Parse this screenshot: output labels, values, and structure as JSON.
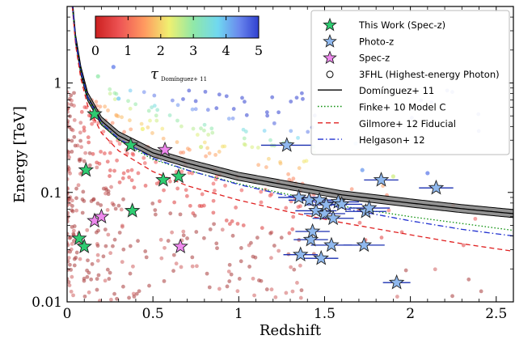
{
  "chart_data": {
    "type": "scatter",
    "xlabel": "Redshift",
    "ylabel": "Energy [TeV]",
    "xlim": [
      0,
      2.6
    ],
    "ylim": [
      0.01,
      5
    ],
    "yscale": "log",
    "x_ticks": [
      0,
      0.5,
      1,
      1.5,
      2,
      2.5
    ],
    "x_tick_labels": [
      "0",
      "0.5",
      "1",
      "1.5",
      "2",
      "2.5"
    ],
    "y_ticks": [
      0.01,
      0.1,
      1
    ],
    "y_tick_labels": [
      "0.01",
      "0.1",
      "1"
    ],
    "colorbar": {
      "label": "τ",
      "label_subscript": "Domínguez+ 11",
      "range": [
        0,
        5
      ],
      "ticks": [
        "0",
        "1",
        "2",
        "3",
        "4",
        "5"
      ]
    },
    "legend_position": "top-right",
    "legend": [
      {
        "label": "This Work (Spec-z)",
        "marker": "star",
        "color": "#2ecc71"
      },
      {
        "label": "Photo-z",
        "marker": "star",
        "color": "#8fb8ee"
      },
      {
        "label": "Spec-z",
        "marker": "star",
        "color": "#ee88ee"
      },
      {
        "label": "3FHL (Highest-energy Photon)",
        "marker": "circle",
        "color": "#ffffff"
      },
      {
        "label": "Domínguez+ 11",
        "marker": "line",
        "color": "#000000",
        "dash": "solid"
      },
      {
        "label": "Finke+ 10 Model C",
        "marker": "line",
        "color": "#0a8f0a",
        "dash": "dotted"
      },
      {
        "label": "Gilmore+ 12 Fiducial",
        "marker": "line",
        "color": "#e02020",
        "dash": "dashed"
      },
      {
        "label": "Helgason+ 12",
        "marker": "line",
        "color": "#2030d0",
        "dash": "dashdot"
      }
    ],
    "series": [
      {
        "name": "This Work (Spec-z)",
        "color": "#2ecc71",
        "x": [
          0.07,
          0.1,
          0.11,
          0.16,
          0.37,
          0.38,
          0.56,
          0.65
        ],
        "y": [
          0.038,
          0.032,
          0.16,
          0.52,
          0.27,
          0.068,
          0.13,
          0.14
        ]
      },
      {
        "name": "Spec-z",
        "color": "#ee88ee",
        "x": [
          0.16,
          0.2,
          0.57,
          0.66
        ],
        "y": [
          0.055,
          0.06,
          0.245,
          0.032
        ]
      },
      {
        "name": "Photo-z",
        "color": "#8fb8ee",
        "x": [
          1.28,
          1.35,
          1.36,
          1.41,
          1.42,
          1.43,
          1.45,
          1.47,
          1.48,
          1.5,
          1.51,
          1.54,
          1.55,
          1.58,
          1.6,
          1.73,
          1.74,
          1.76,
          1.83,
          1.92,
          2.15
        ],
        "y": [
          0.27,
          0.09,
          0.027,
          0.085,
          0.037,
          0.044,
          0.068,
          0.085,
          0.025,
          0.064,
          0.077,
          0.033,
          0.058,
          0.082,
          0.078,
          0.033,
          0.067,
          0.072,
          0.13,
          0.015,
          0.11
        ],
        "xerr": [
          0.15,
          0.12,
          0.1,
          0.12,
          0.1,
          0.1,
          0.12,
          0.12,
          0.1,
          0.12,
          0.12,
          0.12,
          0.12,
          0.12,
          0.12,
          0.12,
          0.12,
          0.12,
          0.1,
          0.08,
          0.1
        ]
      }
    ],
    "scatter_3fhl": {
      "name": "3FHL (Highest-energy Photon)",
      "count": 520,
      "x_range": [
        0,
        2.5
      ],
      "y_range": [
        0.01,
        1
      ]
    },
    "curves": [
      {
        "name": "Domínguez+ 11",
        "color": "#000000",
        "dash": "solid",
        "x": [
          0.03,
          0.05,
          0.08,
          0.12,
          0.2,
          0.3,
          0.5,
          0.7,
          1.0,
          1.3,
          1.6,
          2.0,
          2.3,
          2.6
        ],
        "y": [
          5.5,
          2.5,
          1.3,
          0.75,
          0.45,
          0.33,
          0.23,
          0.185,
          0.14,
          0.115,
          0.095,
          0.08,
          0.071,
          0.064
        ]
      },
      {
        "name": "Finke+ 10 Model C",
        "color": "#0a8f0a",
        "dash": "dotted",
        "x": [
          0.03,
          0.05,
          0.08,
          0.12,
          0.2,
          0.3,
          0.5,
          0.7,
          1.0,
          1.3,
          1.6,
          2.0,
          2.3,
          2.6
        ],
        "y": [
          5.3,
          2.4,
          1.25,
          0.72,
          0.42,
          0.3,
          0.2,
          0.16,
          0.12,
          0.095,
          0.075,
          0.06,
          0.052,
          0.045
        ]
      },
      {
        "name": "Gilmore+ 12 Fiducial",
        "color": "#e02020",
        "dash": "dashed",
        "x": [
          0.03,
          0.05,
          0.08,
          0.12,
          0.2,
          0.3,
          0.5,
          0.7,
          1.0,
          1.3,
          1.6,
          2.0,
          2.3,
          2.6
        ],
        "y": [
          5.0,
          2.2,
          1.1,
          0.62,
          0.35,
          0.24,
          0.155,
          0.115,
          0.085,
          0.066,
          0.053,
          0.041,
          0.034,
          0.029
        ]
      },
      {
        "name": "Helgason+ 12",
        "color": "#2030d0",
        "dash": "dashdot",
        "x": [
          0.03,
          0.05,
          0.08,
          0.12,
          0.2,
          0.3,
          0.5,
          0.7,
          1.0,
          1.3,
          1.6,
          2.0,
          2.3,
          2.6
        ],
        "y": [
          5.4,
          2.45,
          1.28,
          0.74,
          0.43,
          0.31,
          0.205,
          0.16,
          0.118,
          0.092,
          0.072,
          0.055,
          0.046,
          0.04
        ]
      }
    ],
    "colors": {
      "grey_band": "#808080"
    }
  }
}
